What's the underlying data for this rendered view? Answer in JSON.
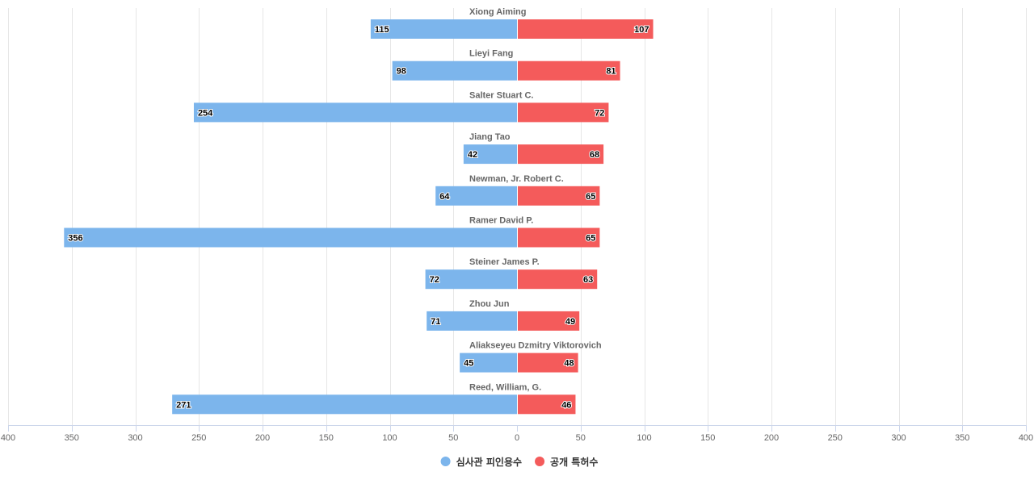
{
  "chart_data": {
    "type": "bar",
    "orientation": "horizontal-diverging",
    "categories": [
      "Xiong Aiming",
      "Lieyi Fang",
      "Salter Stuart C.",
      "Jiang Tao",
      "Newman, Jr. Robert C.",
      "Ramer David P.",
      "Steiner James P.",
      "Zhou Jun",
      "Aliakseyeu Dzmitry Viktorovich",
      "Reed, William, G."
    ],
    "series": [
      {
        "name": "심사관 피인용수",
        "color": "#7cb5ec",
        "direction": "left",
        "values": [
          115,
          98,
          254,
          42,
          64,
          356,
          72,
          71,
          45,
          271
        ]
      },
      {
        "name": "공개 특허수",
        "color": "#f45b5b",
        "direction": "right",
        "values": [
          107,
          81,
          72,
          68,
          65,
          65,
          63,
          49,
          48,
          46
        ]
      }
    ],
    "xlim": [
      -400,
      400
    ],
    "x_ticks": [
      -400,
      -350,
      -300,
      -250,
      -200,
      -150,
      -100,
      -50,
      0,
      50,
      100,
      150,
      200,
      250,
      300,
      350,
      400
    ],
    "x_tick_labels": [
      "400",
      "350",
      "300",
      "250",
      "200",
      "150",
      "100",
      "50",
      "0",
      "50",
      "100",
      "150",
      "200",
      "250",
      "300",
      "350",
      "400"
    ],
    "grid": true,
    "legend_position": "bottom-center",
    "colors": {
      "grid": "#e6e6e6",
      "axis": "#ccd6eb",
      "center_line": "#cccccc"
    }
  }
}
